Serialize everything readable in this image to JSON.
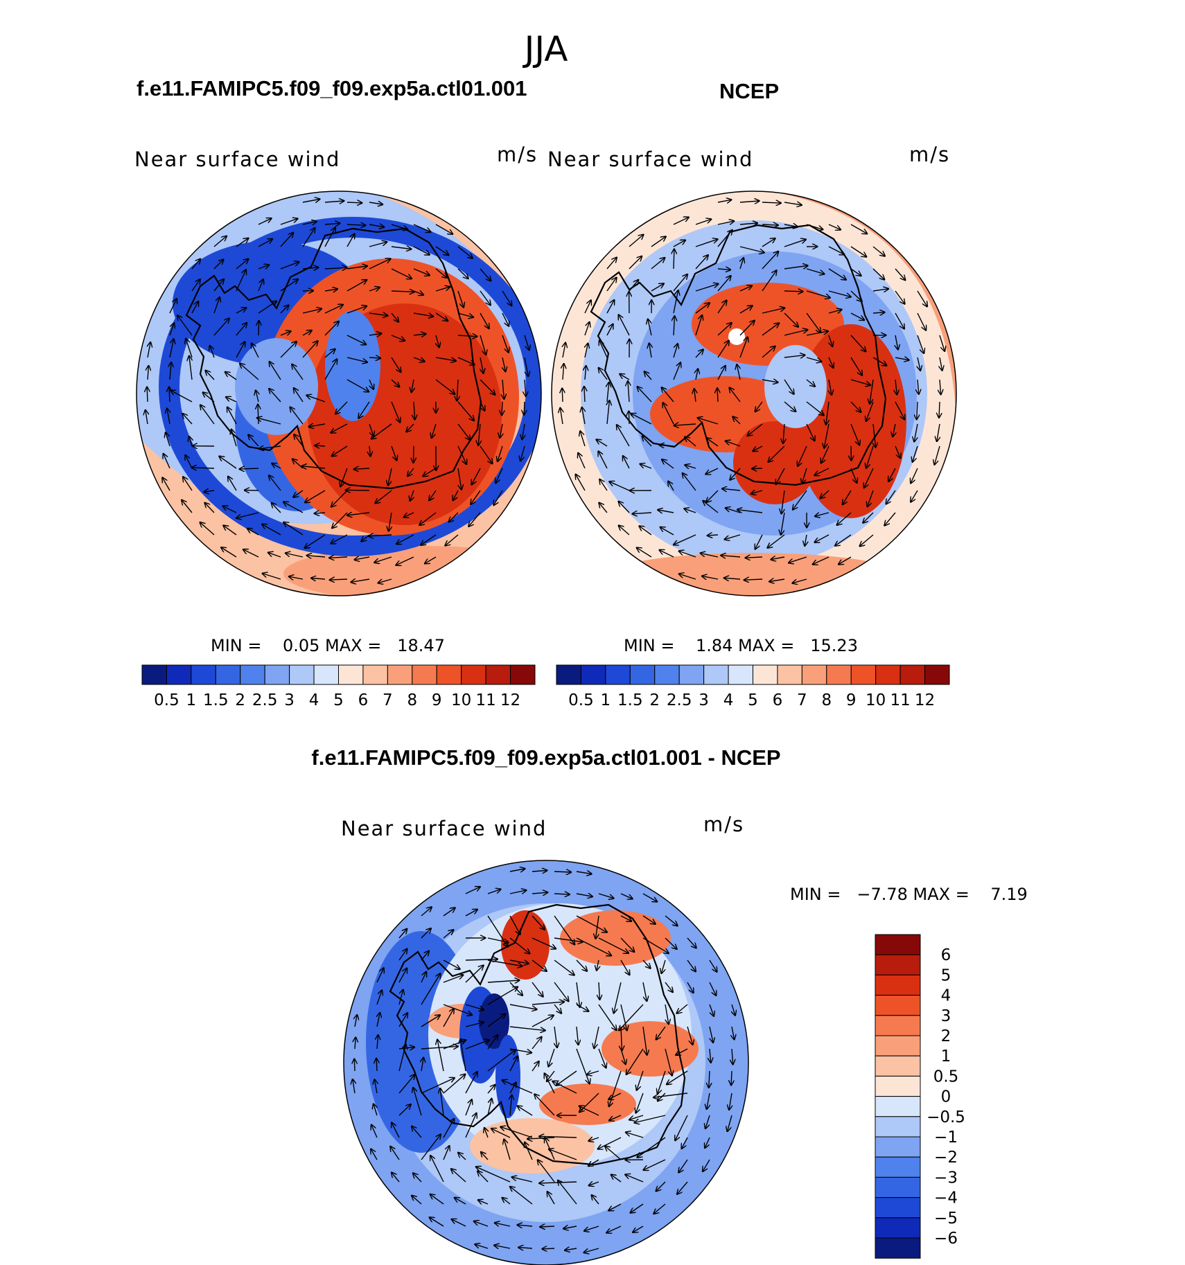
{
  "figure": {
    "season_title": "JJA",
    "colors": {
      "seq_scale": [
        "#0a1b80",
        "#0f2ab8",
        "#1d49d6",
        "#3466e4",
        "#4f82ec",
        "#7ea4f2",
        "#aec8f7",
        "#d7e6fb",
        "#fde5d6",
        "#fbc2a3",
        "#f9a07a",
        "#f67a4f",
        "#ee5328",
        "#d93012",
        "#b71c0c",
        "#870808"
      ],
      "diff_scale": [
        "#0a1b80",
        "#0f2ab8",
        "#1d49d6",
        "#3466e4",
        "#4f82ec",
        "#7ea4f2",
        "#aec8f7",
        "#d7e6fb",
        "#fde5d6",
        "#fbc2a3",
        "#f9a07a",
        "#f67a4f",
        "#ee5328",
        "#d93012",
        "#b71c0c",
        "#870808"
      ],
      "land_outline": "#000000"
    }
  },
  "chart_data": [
    {
      "type": "heatmap",
      "panel": "model",
      "case_title": "f.e11.FAMIPC5.f09_f09.exp5a.ctl01.001",
      "field_label": "Near surface wind",
      "units": "m/s",
      "stats_text": "MIN =    0.05 MAX =   18.47",
      "min": 0.05,
      "max": 18.47,
      "projection": "south polar stereographic",
      "colorbar_orientation": "horizontal",
      "colorbar_levels": [
        "0.5",
        "1",
        "1.5",
        "2",
        "2.5",
        "3",
        "4",
        "5",
        "6",
        "7",
        "8",
        "9",
        "10",
        "11",
        "12"
      ],
      "vectors": "wind arrows overlay"
    },
    {
      "type": "heatmap",
      "panel": "obs",
      "case_title": "NCEP",
      "field_label": "Near surface wind",
      "units": "m/s",
      "stats_text": "MIN =    1.84 MAX =   15.23",
      "min": 1.84,
      "max": 15.23,
      "projection": "south polar stereographic",
      "colorbar_orientation": "horizontal",
      "colorbar_levels": [
        "0.5",
        "1",
        "1.5",
        "2",
        "2.5",
        "3",
        "4",
        "5",
        "6",
        "7",
        "8",
        "9",
        "10",
        "11",
        "12"
      ],
      "vectors": "wind arrows overlay"
    },
    {
      "type": "heatmap",
      "panel": "difference",
      "case_title": "f.e11.FAMIPC5.f09_f09.exp5a.ctl01.001 - NCEP",
      "field_label": "Near surface wind",
      "units": "m/s",
      "stats_text": "MIN =   −7.78 MAX =    7.19",
      "min": -7.78,
      "max": 7.19,
      "projection": "south polar stereographic",
      "colorbar_orientation": "vertical",
      "colorbar_levels": [
        "6",
        "5",
        "4",
        "3",
        "2",
        "1",
        "0.5",
        "0",
        "−0.5",
        "−1",
        "−2",
        "−3",
        "−4",
        "−5",
        "−6"
      ],
      "vectors": "wind difference arrows overlay"
    }
  ]
}
